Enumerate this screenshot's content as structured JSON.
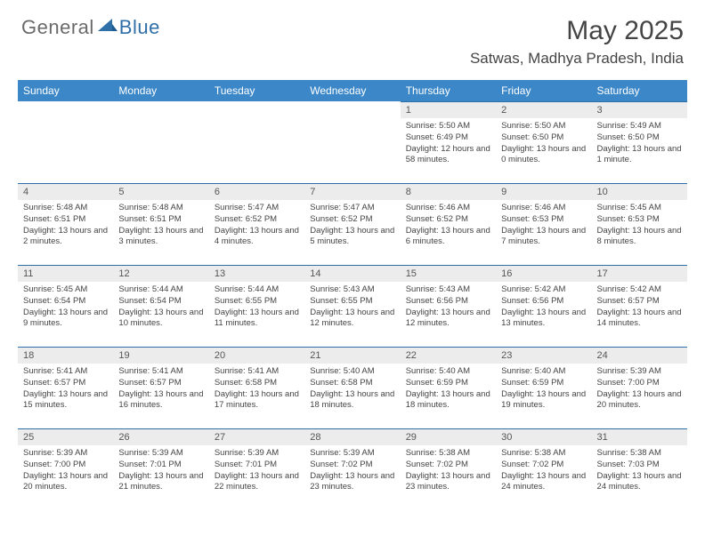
{
  "logo": {
    "general": "General",
    "blue": "Blue"
  },
  "title": "May 2025",
  "location": "Satwas, Madhya Pradesh, India",
  "style": {
    "header_bg": "#3b87c8",
    "header_fg": "#ffffff",
    "daynum_bg": "#ececec",
    "border_color": "#2f6fa8",
    "text_color": "#444444",
    "logo_gray": "#6a6a6a",
    "logo_blue": "#2f6fa8",
    "title_fontsize": 30,
    "location_fontsize": 17,
    "dayhead_fontsize": 12,
    "daynum_fontsize": 11,
    "body_fontsize": 9.5
  },
  "day_headers": [
    "Sunday",
    "Monday",
    "Tuesday",
    "Wednesday",
    "Thursday",
    "Friday",
    "Saturday"
  ],
  "weeks": [
    [
      {
        "n": "",
        "sr": "",
        "ss": "",
        "dl": ""
      },
      {
        "n": "",
        "sr": "",
        "ss": "",
        "dl": ""
      },
      {
        "n": "",
        "sr": "",
        "ss": "",
        "dl": ""
      },
      {
        "n": "",
        "sr": "",
        "ss": "",
        "dl": ""
      },
      {
        "n": "1",
        "sr": "5:50 AM",
        "ss": "6:49 PM",
        "dl": "12 hours and 58 minutes."
      },
      {
        "n": "2",
        "sr": "5:50 AM",
        "ss": "6:50 PM",
        "dl": "13 hours and 0 minutes."
      },
      {
        "n": "3",
        "sr": "5:49 AM",
        "ss": "6:50 PM",
        "dl": "13 hours and 1 minute."
      }
    ],
    [
      {
        "n": "4",
        "sr": "5:48 AM",
        "ss": "6:51 PM",
        "dl": "13 hours and 2 minutes."
      },
      {
        "n": "5",
        "sr": "5:48 AM",
        "ss": "6:51 PM",
        "dl": "13 hours and 3 minutes."
      },
      {
        "n": "6",
        "sr": "5:47 AM",
        "ss": "6:52 PM",
        "dl": "13 hours and 4 minutes."
      },
      {
        "n": "7",
        "sr": "5:47 AM",
        "ss": "6:52 PM",
        "dl": "13 hours and 5 minutes."
      },
      {
        "n": "8",
        "sr": "5:46 AM",
        "ss": "6:52 PM",
        "dl": "13 hours and 6 minutes."
      },
      {
        "n": "9",
        "sr": "5:46 AM",
        "ss": "6:53 PM",
        "dl": "13 hours and 7 minutes."
      },
      {
        "n": "10",
        "sr": "5:45 AM",
        "ss": "6:53 PM",
        "dl": "13 hours and 8 minutes."
      }
    ],
    [
      {
        "n": "11",
        "sr": "5:45 AM",
        "ss": "6:54 PM",
        "dl": "13 hours and 9 minutes."
      },
      {
        "n": "12",
        "sr": "5:44 AM",
        "ss": "6:54 PM",
        "dl": "13 hours and 10 minutes."
      },
      {
        "n": "13",
        "sr": "5:44 AM",
        "ss": "6:55 PM",
        "dl": "13 hours and 11 minutes."
      },
      {
        "n": "14",
        "sr": "5:43 AM",
        "ss": "6:55 PM",
        "dl": "13 hours and 12 minutes."
      },
      {
        "n": "15",
        "sr": "5:43 AM",
        "ss": "6:56 PM",
        "dl": "13 hours and 12 minutes."
      },
      {
        "n": "16",
        "sr": "5:42 AM",
        "ss": "6:56 PM",
        "dl": "13 hours and 13 minutes."
      },
      {
        "n": "17",
        "sr": "5:42 AM",
        "ss": "6:57 PM",
        "dl": "13 hours and 14 minutes."
      }
    ],
    [
      {
        "n": "18",
        "sr": "5:41 AM",
        "ss": "6:57 PM",
        "dl": "13 hours and 15 minutes."
      },
      {
        "n": "19",
        "sr": "5:41 AM",
        "ss": "6:57 PM",
        "dl": "13 hours and 16 minutes."
      },
      {
        "n": "20",
        "sr": "5:41 AM",
        "ss": "6:58 PM",
        "dl": "13 hours and 17 minutes."
      },
      {
        "n": "21",
        "sr": "5:40 AM",
        "ss": "6:58 PM",
        "dl": "13 hours and 18 minutes."
      },
      {
        "n": "22",
        "sr": "5:40 AM",
        "ss": "6:59 PM",
        "dl": "13 hours and 18 minutes."
      },
      {
        "n": "23",
        "sr": "5:40 AM",
        "ss": "6:59 PM",
        "dl": "13 hours and 19 minutes."
      },
      {
        "n": "24",
        "sr": "5:39 AM",
        "ss": "7:00 PM",
        "dl": "13 hours and 20 minutes."
      }
    ],
    [
      {
        "n": "25",
        "sr": "5:39 AM",
        "ss": "7:00 PM",
        "dl": "13 hours and 20 minutes."
      },
      {
        "n": "26",
        "sr": "5:39 AM",
        "ss": "7:01 PM",
        "dl": "13 hours and 21 minutes."
      },
      {
        "n": "27",
        "sr": "5:39 AM",
        "ss": "7:01 PM",
        "dl": "13 hours and 22 minutes."
      },
      {
        "n": "28",
        "sr": "5:39 AM",
        "ss": "7:02 PM",
        "dl": "13 hours and 23 minutes."
      },
      {
        "n": "29",
        "sr": "5:38 AM",
        "ss": "7:02 PM",
        "dl": "13 hours and 23 minutes."
      },
      {
        "n": "30",
        "sr": "5:38 AM",
        "ss": "7:02 PM",
        "dl": "13 hours and 24 minutes."
      },
      {
        "n": "31",
        "sr": "5:38 AM",
        "ss": "7:03 PM",
        "dl": "13 hours and 24 minutes."
      }
    ]
  ],
  "labels": {
    "sunrise": "Sunrise:",
    "sunset": "Sunset:",
    "daylight": "Daylight:"
  }
}
